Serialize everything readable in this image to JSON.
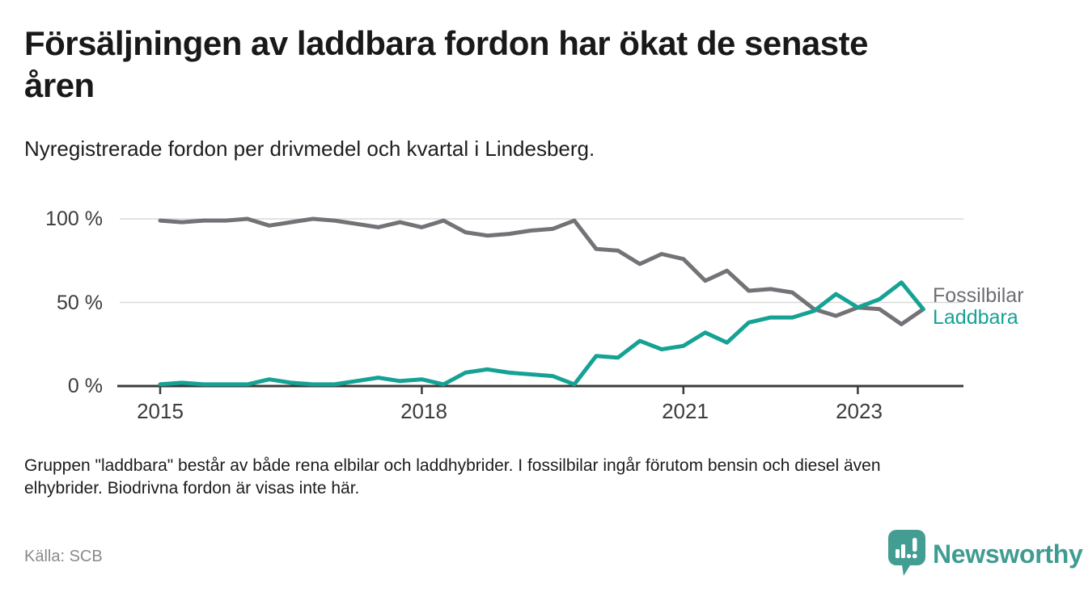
{
  "header": {
    "title": "Försäljningen av laddbara fordon har ökat de senaste åren",
    "subtitle": "Nyregistrerade fordon per drivmedel och kvartal i Lindesberg."
  },
  "chart_data": {
    "type": "line",
    "title": "Nyregistrerade fordon per drivmedel och kvartal i Lindesberg",
    "x_unit": "kvartal",
    "categories": [
      "2015 Q1",
      "2015 Q2",
      "2015 Q3",
      "2015 Q4",
      "2016 Q1",
      "2016 Q2",
      "2016 Q3",
      "2016 Q4",
      "2017 Q1",
      "2017 Q2",
      "2017 Q3",
      "2017 Q4",
      "2018 Q1",
      "2018 Q2",
      "2018 Q3",
      "2018 Q4",
      "2019 Q1",
      "2019 Q2",
      "2019 Q3",
      "2019 Q4",
      "2020 Q1",
      "2020 Q2",
      "2020 Q3",
      "2020 Q4",
      "2021 Q1",
      "2021 Q2",
      "2021 Q3",
      "2021 Q4",
      "2022 Q1",
      "2022 Q2",
      "2022 Q3",
      "2022 Q4",
      "2023 Q1",
      "2023 Q2",
      "2023 Q3",
      "2023 Q4"
    ],
    "series": [
      {
        "name": "Fossilbilar",
        "color": "#737377",
        "values": [
          99,
          98,
          99,
          99,
          100,
          96,
          98,
          100,
          99,
          97,
          95,
          98,
          95,
          99,
          92,
          90,
          91,
          93,
          94,
          99,
          82,
          81,
          73,
          79,
          76,
          63,
          69,
          57,
          58,
          56,
          46,
          42,
          47,
          46,
          37,
          46
        ]
      },
      {
        "name": "Laddbara",
        "color": "#15a294",
        "values": [
          1,
          2,
          1,
          1,
          1,
          4,
          2,
          1,
          1,
          3,
          5,
          3,
          4,
          1,
          8,
          10,
          8,
          7,
          6,
          1,
          18,
          17,
          27,
          22,
          24,
          32,
          26,
          38,
          41,
          41,
          45,
          55,
          47,
          52,
          62,
          46
        ]
      }
    ],
    "unit": "%",
    "ylim": [
      0,
      100
    ],
    "ytick_labels": [
      "0 %",
      "50 %",
      "100 %"
    ],
    "ytick_values": [
      0,
      50,
      100
    ],
    "xtick_labels": [
      "2015",
      "2018",
      "2021",
      "2023"
    ],
    "xtick_quarter_indices": [
      0,
      12,
      24,
      32
    ],
    "grid": true,
    "legend_position": "end-of-line-right"
  },
  "footer": {
    "note": "Gruppen \"laddbara\" består av både rena elbilar och laddhybrider. I fossilbilar ingår förutom bensin och diesel även elhybrider. Biodrivna fordon är visas inte här.",
    "source": "Källa: SCB",
    "brand": "Newsworthy"
  },
  "colors": {
    "accent_teal": "#15a294",
    "line_gray": "#737377",
    "grid": "#d9d9d9",
    "axis": "#3b3b3b",
    "brand_teal": "#449d93"
  }
}
